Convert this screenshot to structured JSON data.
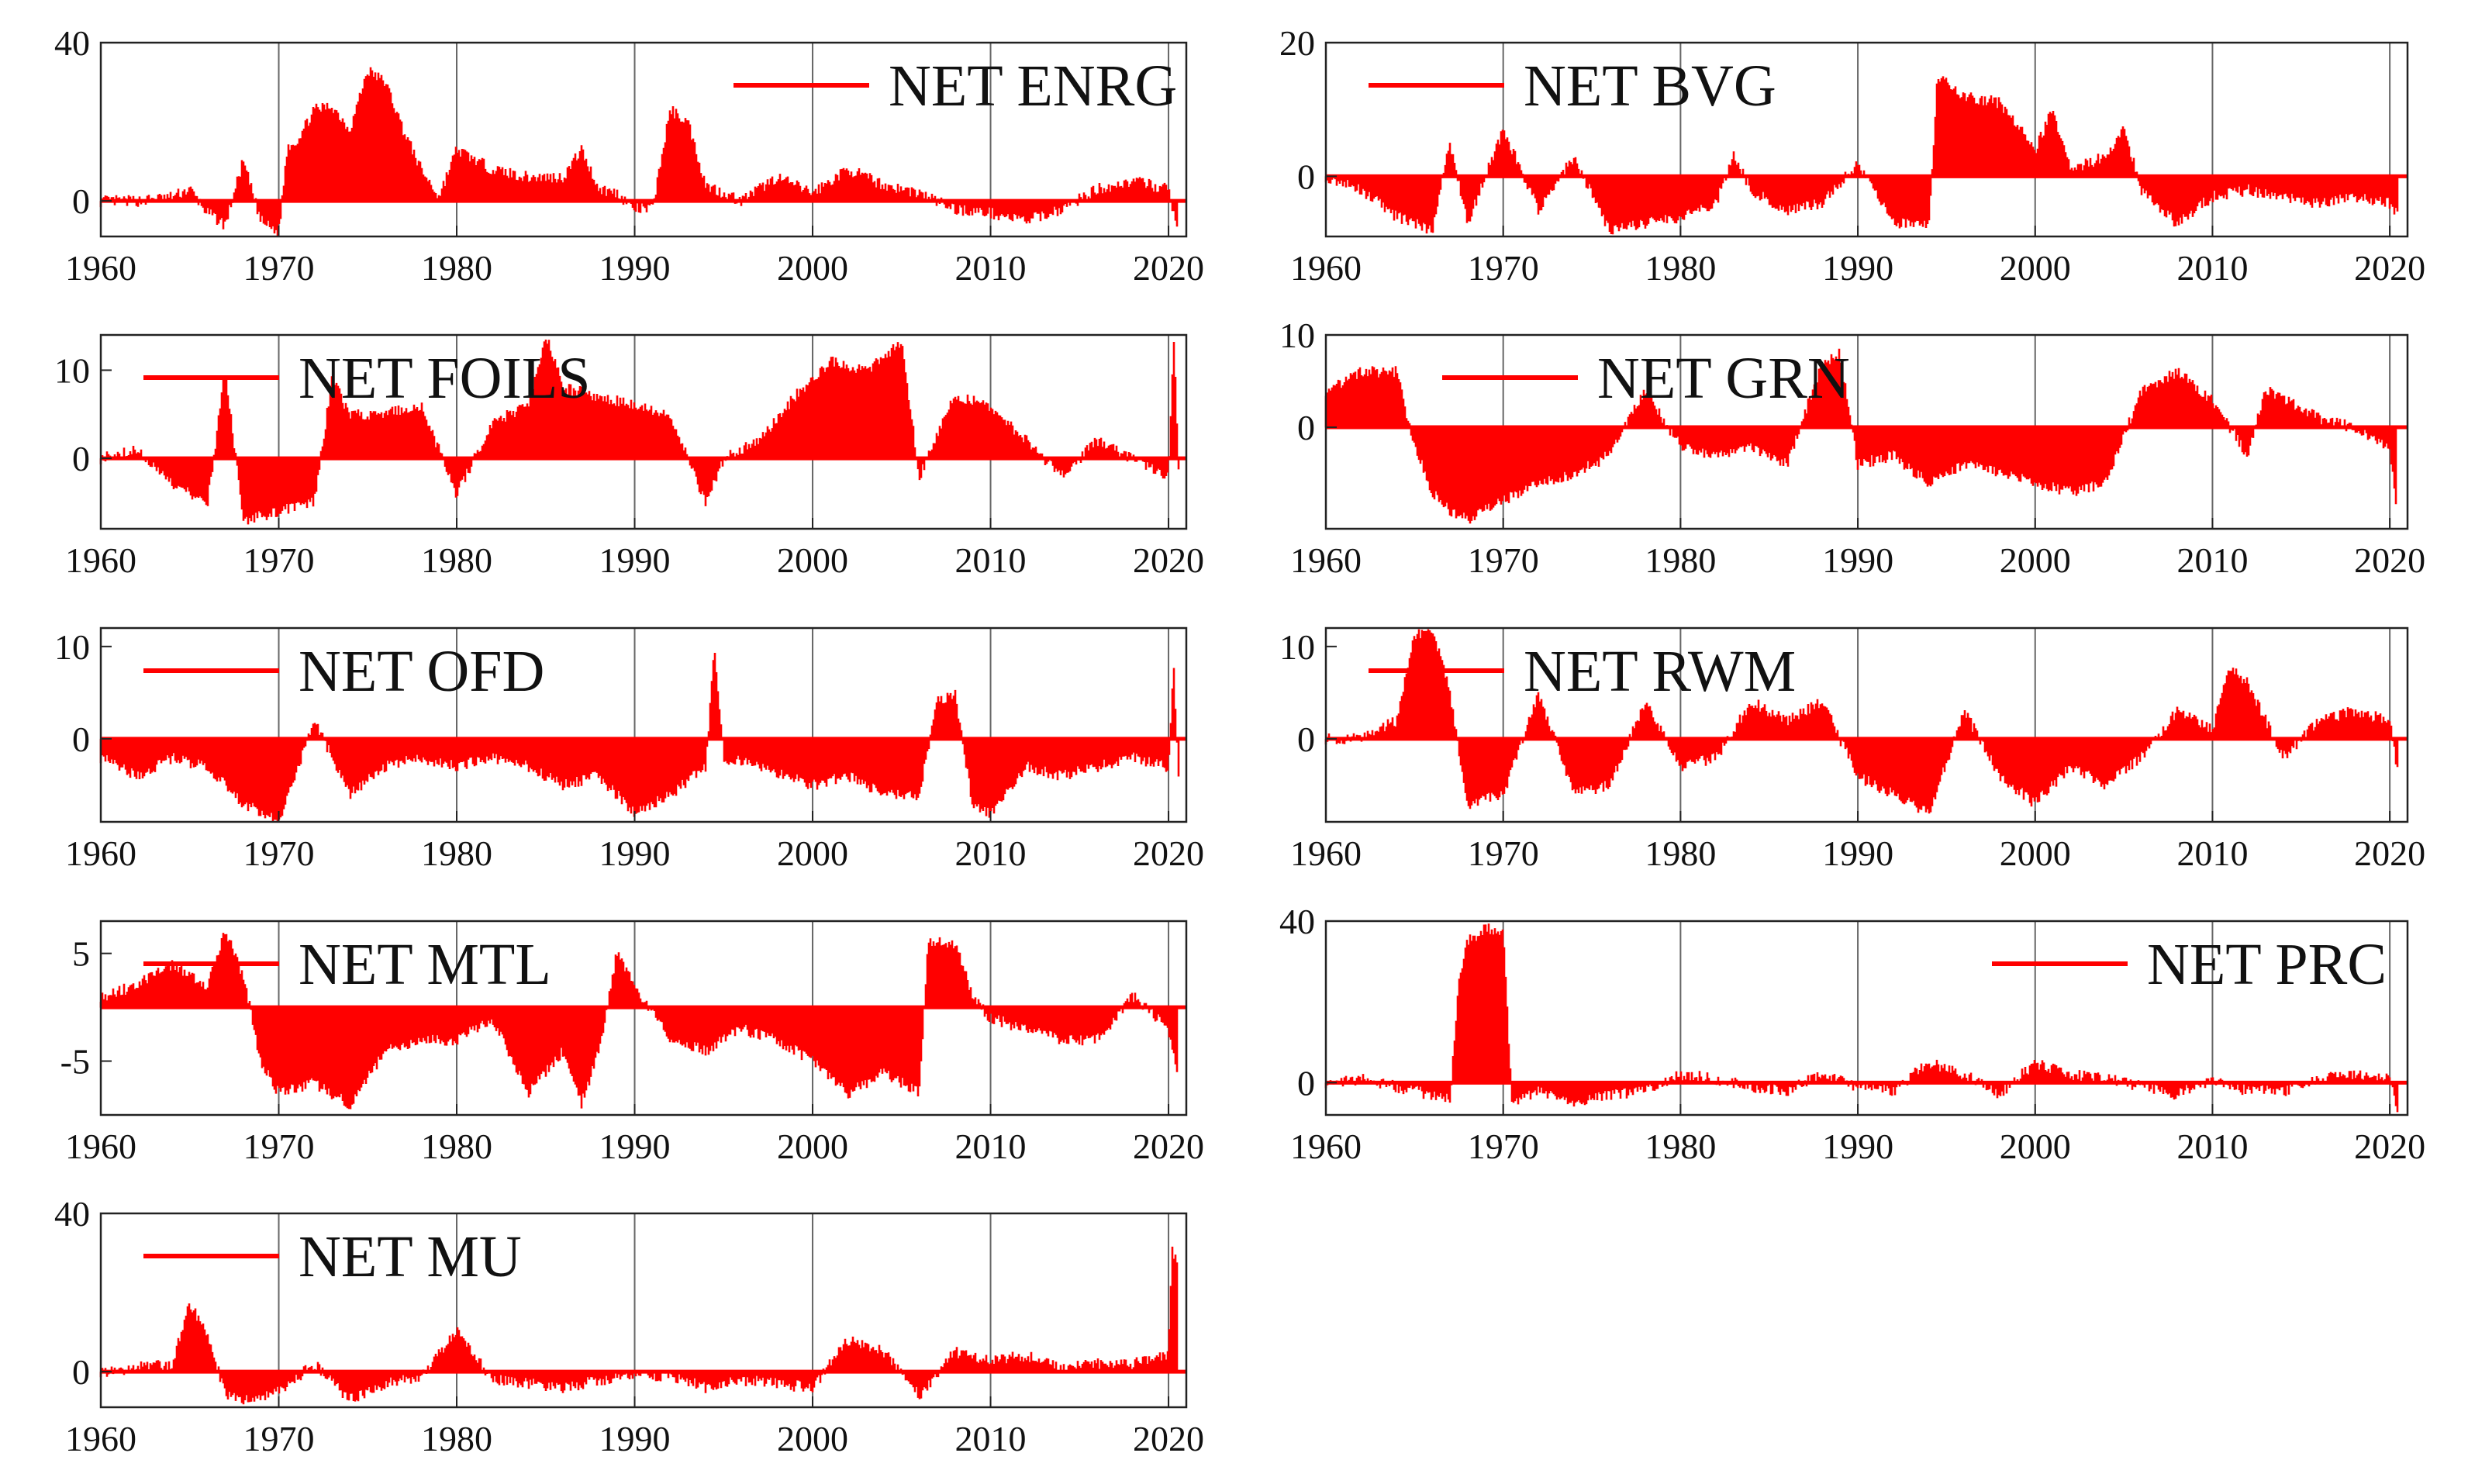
{
  "figure": {
    "color": "#ff0000",
    "grid": "vertical lines at each decade"
  },
  "chart_data": [
    {
      "type": "area",
      "legend": "NET ENRG",
      "legend_position": "top-right",
      "x_ticks": [
        "1960",
        "1970",
        "1980",
        "1990",
        "2000",
        "2010",
        "2020"
      ],
      "y_ticks": [
        "40",
        "0"
      ],
      "y_tick_values": [
        40,
        0
      ],
      "ylim": [
        -9,
        40
      ],
      "xlim": [
        1960,
        2021
      ],
      "series": [
        {
          "name": "NET ENRG",
          "x": [
            1960,
            1962,
            1964,
            1965,
            1966,
            1967,
            1968,
            1969,
            1970,
            1970.5,
            1971,
            1972,
            1973,
            1974,
            1975,
            1976,
            1977,
            1978,
            1979,
            1980,
            1982,
            1984,
            1986,
            1987,
            1988,
            1989,
            1990,
            1991,
            1992,
            1993,
            1994,
            1996,
            1998,
            2000,
            2002,
            2004,
            2006,
            2008,
            2010,
            2012,
            2014,
            2016,
            2018,
            2019,
            2020,
            2020.5
          ],
          "values": [
            0,
            0,
            1,
            3,
            -3,
            -6,
            10,
            -5,
            -8,
            14,
            15,
            23,
            24,
            18,
            33,
            30,
            18,
            8,
            1,
            13,
            8,
            6,
            6,
            13,
            3,
            2,
            -2,
            -2,
            23,
            20,
            4,
            0,
            6,
            2,
            8,
            4,
            2,
            -2,
            -3,
            -5,
            -2,
            3,
            5,
            4,
            3,
            -7
          ]
        }
      ]
    },
    {
      "type": "area",
      "legend": "NET BVG",
      "legend_position": "top-left",
      "x_ticks": [
        "1960",
        "1970",
        "1980",
        "1990",
        "2000",
        "2010",
        "2020"
      ],
      "y_ticks": [
        "20",
        "0"
      ],
      "y_tick_values": [
        20,
        0
      ],
      "ylim": [
        -9,
        20
      ],
      "xlim": [
        1960,
        2021
      ],
      "series": [
        {
          "name": "NET BVG",
          "x": [
            1960,
            1962,
            1964,
            1966,
            1967,
            1968,
            1970,
            1972,
            1974,
            1976,
            1978,
            1980,
            1982,
            1983,
            1984,
            1986,
            1988,
            1990,
            1992,
            1994,
            1994.5,
            1996,
            1998,
            2000,
            2001,
            2002,
            2004,
            2005,
            2006,
            2008,
            2010,
            2012,
            2014,
            2016,
            2018,
            2020,
            2020.5
          ],
          "values": [
            0,
            -2,
            -6,
            -8,
            5,
            -7,
            7,
            -5,
            3,
            -8,
            -7,
            -6,
            -4,
            3,
            -2,
            -5,
            -4,
            2,
            -7,
            -7,
            15,
            12,
            11,
            4,
            10,
            1,
            3,
            7,
            -2,
            -7,
            -3,
            -2,
            -3,
            -4,
            -3,
            -4,
            -6
          ]
        }
      ]
    },
    {
      "type": "area",
      "legend": "NET FOILS",
      "legend_position": "top-left",
      "x_ticks": [
        "1960",
        "1970",
        "1980",
        "1990",
        "2000",
        "2010",
        "2020"
      ],
      "y_ticks": [
        "10",
        "0"
      ],
      "y_tick_values": [
        10,
        0
      ],
      "ylim": [
        -8,
        14
      ],
      "xlim": [
        1960,
        2021
      ],
      "series": [
        {
          "name": "NET FOILS",
          "x": [
            1960,
            1962,
            1964,
            1966,
            1967,
            1968,
            1970,
            1972,
            1973,
            1974,
            1976,
            1978,
            1980,
            1982,
            1984,
            1985,
            1986,
            1988,
            1990,
            1992,
            1994,
            1995,
            1997,
            1999,
            2001,
            2003,
            2005,
            2006,
            2008,
            2010,
            2012,
            2014,
            2016,
            2018,
            2020,
            2020.3,
            2020.6
          ],
          "values": [
            0,
            1,
            -3,
            -5,
            10,
            -7,
            -6,
            -5,
            9,
            5,
            5,
            6,
            -4,
            4,
            6,
            14,
            8,
            7,
            6,
            5,
            -5,
            0,
            2,
            7,
            11,
            10,
            13,
            -2,
            7,
            6,
            2,
            -2,
            2,
            0,
            -2,
            14,
            -3
          ]
        }
      ]
    },
    {
      "type": "area",
      "legend": "NET GRN",
      "legend_position": "top-center",
      "x_ticks": [
        "1960",
        "1970",
        "1980",
        "1990",
        "2000",
        "2010",
        "2020"
      ],
      "y_ticks": [
        "10",
        "0"
      ],
      "y_tick_values": [
        10,
        0
      ],
      "ylim": [
        -11,
        10
      ],
      "xlim": [
        1960,
        2021
      ],
      "series": [
        {
          "name": "NET GRN",
          "x": [
            1960,
            1962,
            1964,
            1965,
            1966,
            1967,
            1968,
            1970,
            1972,
            1974,
            1976,
            1978,
            1980,
            1982,
            1984,
            1986,
            1988,
            1989,
            1990,
            1992,
            1994,
            1996,
            1998,
            2000,
            2002,
            2004,
            2006,
            2008,
            2010,
            2012,
            2013,
            2014,
            2016,
            2018,
            2020,
            2020.4
          ],
          "values": [
            4,
            6,
            6,
            -2,
            -7,
            -9,
            -10,
            -8,
            -6,
            -5,
            -3,
            4,
            -2,
            -3,
            -2,
            -4,
            7,
            8,
            -4,
            -3,
            -6,
            -4,
            -5,
            -6,
            -7,
            -6,
            4,
            6,
            3,
            -3,
            4,
            3,
            1,
            0,
            -2,
            -10
          ]
        }
      ]
    },
    {
      "type": "area",
      "legend": "NET OFD",
      "legend_position": "top-left",
      "x_ticks": [
        "1960",
        "1970",
        "1980",
        "1990",
        "2000",
        "2010",
        "2020"
      ],
      "y_ticks": [
        "10",
        "0"
      ],
      "y_tick_values": [
        10,
        0
      ],
      "ylim": [
        -9,
        12
      ],
      "xlim": [
        1960,
        2021
      ],
      "series": [
        {
          "name": "NET OFD",
          "x": [
            1960,
            1962,
            1964,
            1966,
            1968,
            1970,
            1972,
            1974,
            1976,
            1978,
            1980,
            1982,
            1984,
            1986,
            1988,
            1990,
            1992,
            1994,
            1994.5,
            1995,
            1997,
            2000,
            2002,
            2004,
            2006,
            2007,
            2008,
            2009,
            2010,
            2012,
            2014,
            2016,
            2018,
            2020,
            2020.3,
            2020.6
          ],
          "values": [
            -2,
            -4,
            -2,
            -3,
            -7,
            -9,
            2,
            -6,
            -3,
            -2,
            -3,
            -2,
            -3,
            -5,
            -4,
            -8,
            -6,
            -3,
            10,
            -2,
            -3,
            -5,
            -4,
            -6,
            -6,
            4,
            5,
            -7,
            -8,
            -3,
            -4,
            -3,
            -2,
            -3,
            8,
            -6
          ]
        }
      ]
    },
    {
      "type": "area",
      "legend": "NET RWM",
      "legend_position": "top-left",
      "x_ticks": [
        "1960",
        "1970",
        "1980",
        "1990",
        "2000",
        "2010",
        "2020"
      ],
      "y_ticks": [
        "10",
        "0"
      ],
      "y_tick_values": [
        10,
        0
      ],
      "ylim": [
        -9,
        12
      ],
      "xlim": [
        1960,
        2021
      ],
      "series": [
        {
          "name": "NET RWM",
          "x": [
            1960,
            1962,
            1964,
            1965,
            1966,
            1967,
            1968,
            1970,
            1972,
            1974,
            1976,
            1978,
            1980,
            1982,
            1984,
            1986,
            1988,
            1990,
            1992,
            1994,
            1996,
            1998,
            2000,
            2002,
            2004,
            2006,
            2008,
            2010,
            2011,
            2012,
            2014,
            2016,
            2018,
            2020,
            2020.5
          ],
          "values": [
            0,
            0,
            2,
            11,
            12,
            5,
            -7,
            -6,
            5,
            -6,
            -5,
            4,
            -3,
            -2,
            4,
            2,
            4,
            -4,
            -6,
            -8,
            3,
            -4,
            -7,
            -3,
            -5,
            -2,
            3,
            1,
            8,
            6,
            -2,
            2,
            3,
            2,
            -4
          ]
        }
      ]
    },
    {
      "type": "area",
      "legend": "NET MTL",
      "legend_position": "top-left",
      "x_ticks": [
        "1960",
        "1970",
        "1980",
        "1990",
        "2000",
        "2010",
        "2020"
      ],
      "y_ticks": [
        "5",
        "-5"
      ],
      "y_tick_values": [
        5,
        -5
      ],
      "ylim": [
        -10,
        8
      ],
      "xlim": [
        1960,
        2021
      ],
      "series": [
        {
          "name": "NET MTL",
          "x": [
            1960,
            1962,
            1964,
            1966,
            1967,
            1968,
            1969,
            1970,
            1972,
            1974,
            1976,
            1978,
            1980,
            1982,
            1984,
            1986,
            1987,
            1988,
            1989,
            1990,
            1992,
            1994,
            1996,
            1998,
            2000,
            2002,
            2004,
            2006,
            2006.5,
            2008,
            2009,
            2010,
            2012,
            2014,
            2016,
            2018,
            2020,
            2020.5
          ],
          "values": [
            1,
            2,
            4,
            2,
            7,
            3,
            -5,
            -8,
            -7,
            -9,
            -4,
            -3,
            -3,
            -1,
            -8,
            -4,
            -9,
            -4,
            5,
            2,
            -3,
            -4,
            -2,
            -3,
            -5,
            -8,
            -6,
            -8,
            6,
            6,
            1,
            -1,
            -2,
            -3,
            -3,
            1,
            -2,
            -6
          ]
        }
      ]
    },
    {
      "type": "area",
      "legend": "NET PRC",
      "legend_position": "top-right",
      "x_ticks": [
        "1960",
        "1970",
        "1980",
        "1990",
        "2000",
        "2010",
        "2020"
      ],
      "y_ticks": [
        "40",
        "0"
      ],
      "y_tick_values": [
        40,
        0
      ],
      "ylim": [
        -8,
        40
      ],
      "xlim": [
        1960,
        2021
      ],
      "series": [
        {
          "name": "NET PRC",
          "x": [
            1960,
            1962,
            1964,
            1966,
            1967,
            1967.5,
            1968,
            1969,
            1970,
            1970.5,
            1972,
            1974,
            1976,
            1978,
            1980,
            1982,
            1984,
            1986,
            1988,
            1990,
            1992,
            1994,
            1996,
            1998,
            2000,
            2002,
            2004,
            2006,
            2008,
            2010,
            2012,
            2014,
            2016,
            2018,
            2020,
            2020.5
          ],
          "values": [
            0,
            1,
            -1,
            -3,
            -4,
            25,
            35,
            38,
            38,
            -5,
            -2,
            -5,
            -3,
            -2,
            2,
            1,
            -1,
            -2,
            2,
            -1,
            -2,
            5,
            2,
            -3,
            5,
            2,
            1,
            -1,
            -3,
            1,
            -2,
            -2,
            1,
            2,
            1,
            -7
          ]
        }
      ]
    },
    {
      "type": "area",
      "legend": "NET MU",
      "legend_position": "top-left",
      "x_ticks": [
        "1960",
        "1970",
        "1980",
        "1990",
        "2000",
        "2010",
        "2020"
      ],
      "y_ticks": [
        "40",
        "0"
      ],
      "y_tick_values": [
        40,
        0
      ],
      "ylim": [
        -9,
        40
      ],
      "xlim": [
        1960,
        2021
      ],
      "series": [
        {
          "name": "NET MU",
          "x": [
            1960,
            1962,
            1964,
            1965,
            1966,
            1967,
            1968,
            1970,
            1972,
            1974,
            1976,
            1978,
            1980,
            1982,
            1984,
            1986,
            1988,
            1990,
            1992,
            1994,
            1996,
            1998,
            2000,
            2002,
            2004,
            2006,
            2008,
            2010,
            2012,
            2014,
            2016,
            2018,
            2019,
            2020,
            2020.2,
            2020.5
          ],
          "values": [
            0,
            1,
            2,
            17,
            10,
            -6,
            -7,
            -5,
            2,
            -7,
            -3,
            -1,
            10,
            -2,
            -3,
            -4,
            -2,
            -1,
            -1,
            -4,
            -2,
            -3,
            -4,
            8,
            5,
            -6,
            5,
            3,
            4,
            1,
            2,
            2,
            3,
            4,
            31,
            28
          ]
        }
      ]
    }
  ]
}
